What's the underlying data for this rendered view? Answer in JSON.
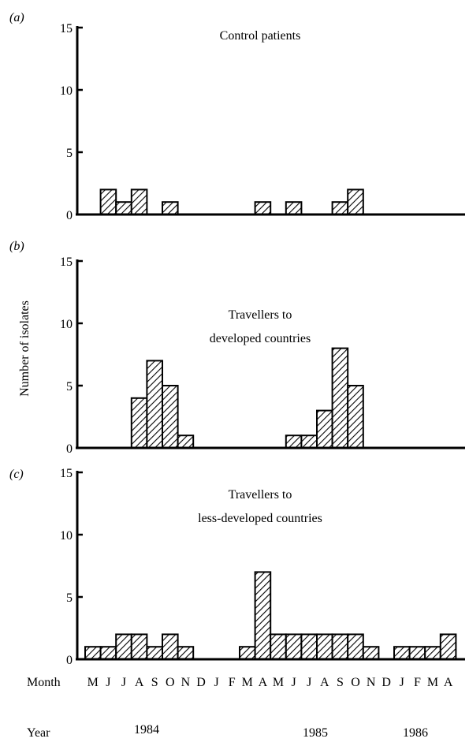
{
  "figure": {
    "ylabel": "Number of isolates",
    "month_row_label": "Month",
    "year_row_label": "Year",
    "years": [
      "1984",
      "1985",
      "1986"
    ],
    "months": [
      "M",
      "J",
      "J",
      "A",
      "S",
      "O",
      "N",
      "D",
      "J",
      "F",
      "M",
      "A",
      "M",
      "J",
      "J",
      "A",
      "S",
      "O",
      "N",
      "D",
      "J",
      "F",
      "M",
      "A"
    ],
    "month_starts": [
      "1984-05",
      "1984-06",
      "1984-07",
      "1984-08",
      "1984-09",
      "1984-10",
      "1984-11",
      "1984-12",
      "1985-01",
      "1985-02",
      "1985-03",
      "1985-04",
      "1985-05",
      "1985-06",
      "1985-07",
      "1985-08",
      "1985-09",
      "1985-10",
      "1985-11",
      "1985-12",
      "1986-01",
      "1986-02",
      "1986-03",
      "1986-04"
    ]
  },
  "chart_data": [
    {
      "type": "bar",
      "panel": "(a)",
      "title": "Control patients",
      "ylim": [
        0,
        15
      ],
      "yticks": [
        0,
        5,
        10,
        15
      ],
      "bar_pattern": "diagonal-hatch",
      "values": [
        0,
        2,
        1,
        2,
        0,
        1,
        0,
        0,
        0,
        0,
        0,
        1,
        0,
        1,
        0,
        0,
        1,
        2,
        0,
        0,
        0,
        0,
        0,
        0
      ]
    },
    {
      "type": "bar",
      "panel": "(b)",
      "title": [
        "Travellers to",
        "developed countries"
      ],
      "ylim": [
        0,
        15
      ],
      "yticks": [
        0,
        5,
        10,
        15
      ],
      "bar_pattern": "diagonal-hatch",
      "values": [
        0,
        0,
        0,
        4,
        7,
        5,
        1,
        0,
        0,
        0,
        0,
        0,
        0,
        1,
        1,
        3,
        8,
        5,
        0,
        0,
        0,
        0,
        0,
        0
      ]
    },
    {
      "type": "bar",
      "panel": "(c)",
      "title": [
        "Travellers to",
        "less-developed countries"
      ],
      "ylim": [
        0,
        15
      ],
      "yticks": [
        0,
        5,
        10,
        15
      ],
      "bar_pattern": "diagonal-hatch",
      "values": [
        1,
        1,
        2,
        2,
        1,
        2,
        1,
        0,
        0,
        0,
        1,
        7,
        2,
        2,
        2,
        2,
        2,
        2,
        1,
        0,
        1,
        1,
        1,
        2
      ]
    }
  ]
}
